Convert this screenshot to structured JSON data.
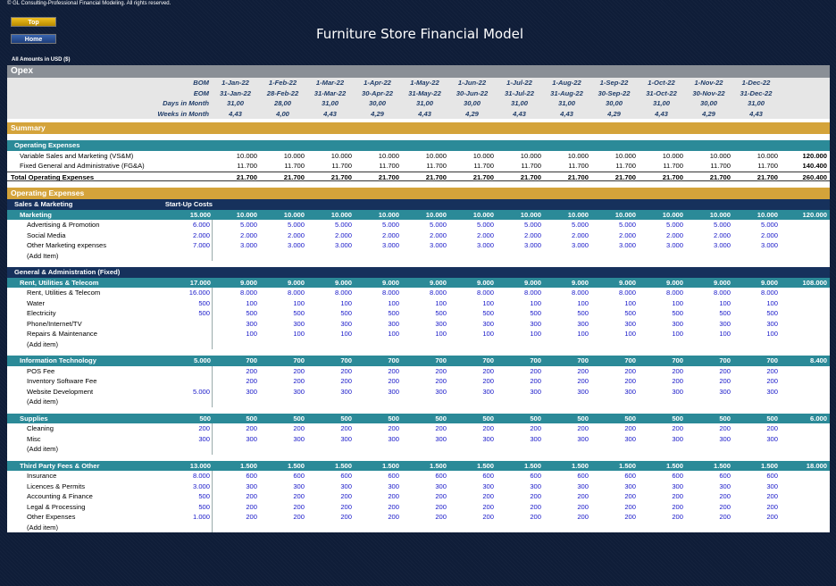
{
  "copyright": "© GL Consulting-Professional Financial Modeling. All rights reserved.",
  "nav": {
    "top": "Top",
    "home": "Home"
  },
  "title": "Furniture Store Financial Model",
  "amounts": "All Amounts in  USD ($)",
  "opex_title": "Opex",
  "header": {
    "bom_label": "BOM",
    "eom_label": "EOM",
    "days_label": "Days in Month",
    "weeks_label": "Weeks in Month",
    "bom": [
      "1-Jan-22",
      "1-Feb-22",
      "1-Mar-22",
      "1-Apr-22",
      "1-May-22",
      "1-Jun-22",
      "1-Jul-22",
      "1-Aug-22",
      "1-Sep-22",
      "1-Oct-22",
      "1-Nov-22",
      "1-Dec-22"
    ],
    "eom": [
      "31-Jan-22",
      "28-Feb-22",
      "31-Mar-22",
      "30-Apr-22",
      "31-May-22",
      "30-Jun-22",
      "31-Jul-22",
      "31-Aug-22",
      "30-Sep-22",
      "31-Oct-22",
      "30-Nov-22",
      "31-Dec-22"
    ],
    "days": [
      "31,00",
      "28,00",
      "31,00",
      "30,00",
      "31,00",
      "30,00",
      "31,00",
      "31,00",
      "30,00",
      "31,00",
      "30,00",
      "31,00"
    ],
    "weeks": [
      "4,43",
      "4,00",
      "4,43",
      "4,29",
      "4,43",
      "4,29",
      "4,43",
      "4,43",
      "4,29",
      "4,43",
      "4,29",
      "4,43"
    ]
  },
  "summary": {
    "title": "Summary",
    "subheader": "Operating Expenses",
    "rows": [
      {
        "label": "Variable Sales and Marketing (VS&M)",
        "values": [
          "10.000",
          "10.000",
          "10.000",
          "10.000",
          "10.000",
          "10.000",
          "10.000",
          "10.000",
          "10.000",
          "10.000",
          "10.000",
          "10.000"
        ],
        "total": "120.000"
      },
      {
        "label": "Fixed General and Administrative (FG&A)",
        "values": [
          "11.700",
          "11.700",
          "11.700",
          "11.700",
          "11.700",
          "11.700",
          "11.700",
          "11.700",
          "11.700",
          "11.700",
          "11.700",
          "11.700"
        ],
        "total": "140.400"
      }
    ],
    "total_row": {
      "label": "Total Operating Expenses",
      "values": [
        "21.700",
        "21.700",
        "21.700",
        "21.700",
        "21.700",
        "21.700",
        "21.700",
        "21.700",
        "21.700",
        "21.700",
        "21.700",
        "21.700"
      ],
      "total": "260.400"
    }
  },
  "operating": {
    "title": "Operating Expenses",
    "sales_marketing": {
      "title": "Sales & Marketing",
      "startup_label": "Start-Up Costs",
      "groups": [
        {
          "name": "Marketing",
          "startup": "15.000",
          "values": [
            "10.000",
            "10.000",
            "10.000",
            "10.000",
            "10.000",
            "10.000",
            "10.000",
            "10.000",
            "10.000",
            "10.000",
            "10.000",
            "10.000"
          ],
          "total": "120.000",
          "items": [
            {
              "label": "Advertising & Promotion",
              "startup": "6.000",
              "values": [
                "5.000",
                "5.000",
                "5.000",
                "5.000",
                "5.000",
                "5.000",
                "5.000",
                "5.000",
                "5.000",
                "5.000",
                "5.000",
                "5.000"
              ]
            },
            {
              "label": "Social Media",
              "startup": "2.000",
              "values": [
                "2.000",
                "2.000",
                "2.000",
                "2.000",
                "2.000",
                "2.000",
                "2.000",
                "2.000",
                "2.000",
                "2.000",
                "2.000",
                "2.000"
              ]
            },
            {
              "label": "Other Marketing expenses",
              "startup": "7.000",
              "values": [
                "3.000",
                "3.000",
                "3.000",
                "3.000",
                "3.000",
                "3.000",
                "3.000",
                "3.000",
                "3.000",
                "3.000",
                "3.000",
                "3.000"
              ]
            },
            {
              "label": "(Add Item)",
              "startup": "",
              "values": []
            }
          ]
        }
      ]
    },
    "ga": {
      "title": "General & Administration (Fixed)",
      "groups": [
        {
          "name": "Rent, Utilities & Telecom",
          "startup": "17.000",
          "values": [
            "9.000",
            "9.000",
            "9.000",
            "9.000",
            "9.000",
            "9.000",
            "9.000",
            "9.000",
            "9.000",
            "9.000",
            "9.000",
            "9.000"
          ],
          "total": "108.000",
          "items": [
            {
              "label": "Rent, Utilities & Telecom",
              "startup": "16.000",
              "values": [
                "8.000",
                "8.000",
                "8.000",
                "8.000",
                "8.000",
                "8.000",
                "8.000",
                "8.000",
                "8.000",
                "8.000",
                "8.000",
                "8.000"
              ]
            },
            {
              "label": "Water",
              "startup": "500",
              "values": [
                "100",
                "100",
                "100",
                "100",
                "100",
                "100",
                "100",
                "100",
                "100",
                "100",
                "100",
                "100"
              ]
            },
            {
              "label": "Electricity",
              "startup": "500",
              "values": [
                "500",
                "500",
                "500",
                "500",
                "500",
                "500",
                "500",
                "500",
                "500",
                "500",
                "500",
                "500"
              ]
            },
            {
              "label": "Phone/Internet/TV",
              "startup": "",
              "values": [
                "300",
                "300",
                "300",
                "300",
                "300",
                "300",
                "300",
                "300",
                "300",
                "300",
                "300",
                "300"
              ]
            },
            {
              "label": "Repairs & Maintenance",
              "startup": "",
              "values": [
                "100",
                "100",
                "100",
                "100",
                "100",
                "100",
                "100",
                "100",
                "100",
                "100",
                "100",
                "100"
              ]
            },
            {
              "label": "(Add item)",
              "startup": "",
              "values": []
            }
          ]
        },
        {
          "name": "Information Technology",
          "startup": "5.000",
          "values": [
            "700",
            "700",
            "700",
            "700",
            "700",
            "700",
            "700",
            "700",
            "700",
            "700",
            "700",
            "700"
          ],
          "total": "8.400",
          "items": [
            {
              "label": "POS Fee",
              "startup": "",
              "values": [
                "200",
                "200",
                "200",
                "200",
                "200",
                "200",
                "200",
                "200",
                "200",
                "200",
                "200",
                "200"
              ]
            },
            {
              "label": "Inventory Software Fee",
              "startup": "",
              "values": [
                "200",
                "200",
                "200",
                "200",
                "200",
                "200",
                "200",
                "200",
                "200",
                "200",
                "200",
                "200"
              ]
            },
            {
              "label": "Website Development",
              "startup": "5.000",
              "values": [
                "300",
                "300",
                "300",
                "300",
                "300",
                "300",
                "300",
                "300",
                "300",
                "300",
                "300",
                "300"
              ]
            },
            {
              "label": "(Add item)",
              "startup": "",
              "values": []
            }
          ]
        },
        {
          "name": "Supplies",
          "startup": "500",
          "values": [
            "500",
            "500",
            "500",
            "500",
            "500",
            "500",
            "500",
            "500",
            "500",
            "500",
            "500",
            "500"
          ],
          "total": "6.000",
          "items": [
            {
              "label": "Cleaning",
              "startup": "200",
              "values": [
                "200",
                "200",
                "200",
                "200",
                "200",
                "200",
                "200",
                "200",
                "200",
                "200",
                "200",
                "200"
              ]
            },
            {
              "label": "Misc",
              "startup": "300",
              "values": [
                "300",
                "300",
                "300",
                "300",
                "300",
                "300",
                "300",
                "300",
                "300",
                "300",
                "300",
                "300"
              ]
            },
            {
              "label": "(Add item)",
              "startup": "",
              "values": []
            }
          ]
        },
        {
          "name": "Third Party Fees & Other",
          "startup": "13.000",
          "values": [
            "1.500",
            "1.500",
            "1.500",
            "1.500",
            "1.500",
            "1.500",
            "1.500",
            "1.500",
            "1.500",
            "1.500",
            "1.500",
            "1.500"
          ],
          "total": "18.000",
          "items": [
            {
              "label": "Insurance",
              "startup": "8.000",
              "values": [
                "600",
                "600",
                "600",
                "600",
                "600",
                "600",
                "600",
                "600",
                "600",
                "600",
                "600",
                "600"
              ]
            },
            {
              "label": "Licences & Permits",
              "startup": "3.000",
              "values": [
                "300",
                "300",
                "300",
                "300",
                "300",
                "300",
                "300",
                "300",
                "300",
                "300",
                "300",
                "300"
              ]
            },
            {
              "label": "Accounting & Finance",
              "startup": "500",
              "values": [
                "200",
                "200",
                "200",
                "200",
                "200",
                "200",
                "200",
                "200",
                "200",
                "200",
                "200",
                "200"
              ]
            },
            {
              "label": "Legal & Processing",
              "startup": "500",
              "values": [
                "200",
                "200",
                "200",
                "200",
                "200",
                "200",
                "200",
                "200",
                "200",
                "200",
                "200",
                "200"
              ]
            },
            {
              "label": "Other Expenses",
              "startup": "1.000",
              "values": [
                "200",
                "200",
                "200",
                "200",
                "200",
                "200",
                "200",
                "200",
                "200",
                "200",
                "200",
                "200"
              ]
            },
            {
              "label": "(Add item)",
              "startup": "",
              "values": []
            }
          ]
        }
      ]
    }
  }
}
